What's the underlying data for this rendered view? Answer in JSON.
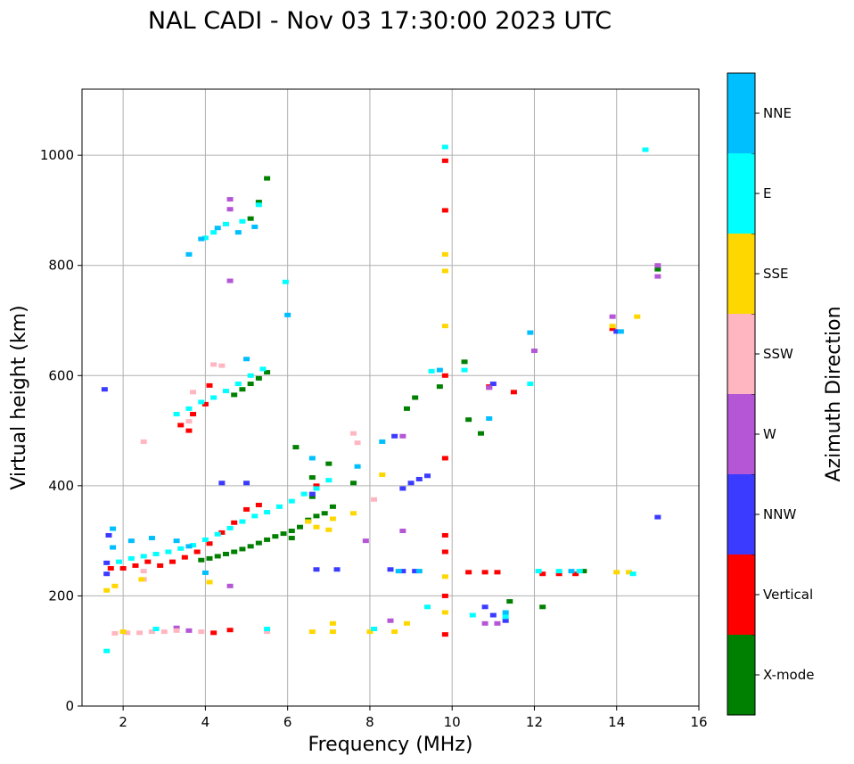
{
  "chart_data": {
    "type": "scatter",
    "title": "NAL CADI - Nov 03 17:30:00 2023 UTC",
    "xlabel": "Frequency (MHz)",
    "ylabel": "Virtual height (km)",
    "xlim": [
      1.0,
      16.0
    ],
    "ylim": [
      0,
      1120
    ],
    "xticks": [
      2,
      4,
      6,
      8,
      10,
      12,
      14,
      16
    ],
    "yticks": [
      0,
      200,
      400,
      600,
      800,
      1000
    ],
    "grid": true,
    "colorbar": {
      "label": "Azimuth Direction",
      "categories": [
        {
          "name": "X-mode",
          "color": "#008000"
        },
        {
          "name": "Vertical",
          "color": "#ff0000"
        },
        {
          "name": "NNW",
          "color": "#3b3bff"
        },
        {
          "name": "W",
          "color": "#b556d6"
        },
        {
          "name": "SSW",
          "color": "#ffb6c1"
        },
        {
          "name": "SSE",
          "color": "#ffd700"
        },
        {
          "name": "E",
          "color": "#00ffff"
        },
        {
          "name": "NNE",
          "color": "#00bfff"
        }
      ]
    },
    "series": [
      {
        "name": "X-mode",
        "points": [
          [
            3.9,
            265
          ],
          [
            4.1,
            268
          ],
          [
            4.3,
            272
          ],
          [
            4.5,
            276
          ],
          [
            4.7,
            280
          ],
          [
            4.9,
            285
          ],
          [
            5.1,
            290
          ],
          [
            5.3,
            296
          ],
          [
            5.5,
            302
          ],
          [
            5.7,
            308
          ],
          [
            5.9,
            313
          ],
          [
            6.1,
            318
          ],
          [
            6.3,
            325
          ],
          [
            6.5,
            338
          ],
          [
            6.7,
            345
          ],
          [
            6.9,
            350
          ],
          [
            7.1,
            362
          ],
          [
            7.6,
            405
          ],
          [
            4.7,
            565
          ],
          [
            4.9,
            575
          ],
          [
            5.1,
            585
          ],
          [
            5.3,
            595
          ],
          [
            5.5,
            606
          ],
          [
            5.3,
            915
          ],
          [
            5.5,
            958
          ],
          [
            5.1,
            885
          ],
          [
            6.1,
            305
          ],
          [
            6.6,
            380
          ],
          [
            7.0,
            440
          ],
          [
            8.9,
            540
          ],
          [
            9.1,
            560
          ],
          [
            9.7,
            580
          ],
          [
            10.3,
            625
          ],
          [
            10.4,
            520
          ],
          [
            10.7,
            495
          ],
          [
            11.4,
            190
          ],
          [
            12.2,
            180
          ],
          [
            13.2,
            245
          ],
          [
            15.0,
            793
          ],
          [
            6.2,
            470
          ],
          [
            6.6,
            415
          ]
        ]
      },
      {
        "name": "Vertical",
        "points": [
          [
            1.7,
            250
          ],
          [
            2.0,
            250
          ],
          [
            2.3,
            255
          ],
          [
            2.6,
            262
          ],
          [
            2.9,
            255
          ],
          [
            3.2,
            262
          ],
          [
            3.5,
            270
          ],
          [
            3.8,
            280
          ],
          [
            4.1,
            295
          ],
          [
            4.4,
            315
          ],
          [
            4.7,
            333
          ],
          [
            5.0,
            357
          ],
          [
            5.3,
            365
          ],
          [
            3.4,
            510
          ],
          [
            3.7,
            530
          ],
          [
            4.0,
            548
          ],
          [
            4.1,
            582
          ],
          [
            3.6,
            500
          ],
          [
            9.83,
            280
          ],
          [
            9.83,
            310
          ],
          [
            9.83,
            200
          ],
          [
            9.83,
            130
          ],
          [
            9.83,
            900
          ],
          [
            9.83,
            990
          ],
          [
            9.83,
            600
          ],
          [
            9.83,
            450
          ],
          [
            10.4,
            243
          ],
          [
            10.8,
            243
          ],
          [
            11.1,
            243
          ],
          [
            12.2,
            240
          ],
          [
            12.6,
            240
          ],
          [
            13.0,
            240
          ],
          [
            13.9,
            685
          ],
          [
            4.6,
            138
          ],
          [
            4.2,
            133
          ],
          [
            6.7,
            400
          ],
          [
            10.9,
            580
          ],
          [
            11.5,
            570
          ]
        ]
      },
      {
        "name": "NNW",
        "points": [
          [
            1.6,
            260
          ],
          [
            1.6,
            240
          ],
          [
            1.65,
            310
          ],
          [
            1.55,
            575
          ],
          [
            8.5,
            248
          ],
          [
            8.8,
            245
          ],
          [
            9.1,
            245
          ],
          [
            6.7,
            248
          ],
          [
            7.2,
            248
          ],
          [
            8.8,
            395
          ],
          [
            9.0,
            405
          ],
          [
            9.2,
            412
          ],
          [
            9.4,
            418
          ],
          [
            8.6,
            490
          ],
          [
            15.0,
            343
          ],
          [
            14.0,
            680
          ],
          [
            11.0,
            585
          ],
          [
            11.0,
            165
          ],
          [
            11.3,
            155
          ],
          [
            10.8,
            180
          ],
          [
            6.6,
            385
          ],
          [
            5.0,
            405
          ],
          [
            4.4,
            405
          ]
        ]
      },
      {
        "name": "W",
        "points": [
          [
            3.3,
            142
          ],
          [
            3.6,
            137
          ],
          [
            4.6,
            920
          ],
          [
            4.6,
            902
          ],
          [
            4.6,
            772
          ],
          [
            15.0,
            800
          ],
          [
            15.0,
            780
          ],
          [
            13.9,
            707
          ],
          [
            12.0,
            645
          ],
          [
            8.8,
            490
          ],
          [
            8.8,
            318
          ],
          [
            7.9,
            300
          ],
          [
            10.8,
            150
          ],
          [
            11.1,
            150
          ],
          [
            4.6,
            218
          ],
          [
            8.5,
            155
          ],
          [
            10.9,
            578
          ]
        ]
      },
      {
        "name": "SSW",
        "points": [
          [
            1.8,
            132
          ],
          [
            2.1,
            133
          ],
          [
            2.4,
            133
          ],
          [
            2.7,
            135
          ],
          [
            3.0,
            135
          ],
          [
            3.3,
            137
          ],
          [
            3.9,
            135
          ],
          [
            2.5,
            230
          ],
          [
            2.5,
            245
          ],
          [
            2.5,
            480
          ],
          [
            3.6,
            517
          ],
          [
            3.7,
            570
          ],
          [
            4.2,
            620
          ],
          [
            4.4,
            618
          ],
          [
            7.6,
            495
          ],
          [
            7.7,
            478
          ],
          [
            8.1,
            375
          ],
          [
            5.5,
            135
          ]
        ]
      },
      {
        "name": "SSE",
        "points": [
          [
            1.6,
            210
          ],
          [
            1.8,
            218
          ],
          [
            2.45,
            230
          ],
          [
            4.1,
            225
          ],
          [
            6.5,
            335
          ],
          [
            6.7,
            325
          ],
          [
            7.0,
            320
          ],
          [
            7.1,
            340
          ],
          [
            7.1,
            150
          ],
          [
            7.1,
            135
          ],
          [
            6.6,
            135
          ],
          [
            7.6,
            350
          ],
          [
            9.83,
            820
          ],
          [
            9.83,
            790
          ],
          [
            9.83,
            690
          ],
          [
            9.83,
            235
          ],
          [
            9.83,
            170
          ],
          [
            14.5,
            707
          ],
          [
            13.9,
            690
          ],
          [
            14.0,
            243
          ],
          [
            14.3,
            243
          ],
          [
            8.3,
            420
          ],
          [
            8.6,
            135
          ],
          [
            8.9,
            150
          ],
          [
            8.0,
            135
          ],
          [
            2.0,
            135
          ]
        ]
      },
      {
        "name": "E",
        "points": [
          [
            1.9,
            262
          ],
          [
            2.2,
            268
          ],
          [
            2.5,
            272
          ],
          [
            2.8,
            276
          ],
          [
            3.1,
            280
          ],
          [
            3.4,
            286
          ],
          [
            3.7,
            292
          ],
          [
            4.0,
            302
          ],
          [
            4.3,
            312
          ],
          [
            4.6,
            323
          ],
          [
            4.9,
            335
          ],
          [
            5.2,
            345
          ],
          [
            5.5,
            352
          ],
          [
            5.8,
            362
          ],
          [
            6.1,
            372
          ],
          [
            6.4,
            385
          ],
          [
            6.7,
            395
          ],
          [
            7.0,
            410
          ],
          [
            3.3,
            530
          ],
          [
            3.6,
            540
          ],
          [
            3.9,
            552
          ],
          [
            4.2,
            560
          ],
          [
            4.5,
            572
          ],
          [
            4.8,
            585
          ],
          [
            5.1,
            600
          ],
          [
            5.4,
            612
          ],
          [
            4.0,
            850
          ],
          [
            4.2,
            860
          ],
          [
            4.5,
            875
          ],
          [
            4.9,
            880
          ],
          [
            5.3,
            910
          ],
          [
            5.95,
            770
          ],
          [
            14.7,
            1010
          ],
          [
            9.83,
            1015
          ],
          [
            9.5,
            608
          ],
          [
            10.3,
            610
          ],
          [
            11.9,
            585
          ],
          [
            12.1,
            245
          ],
          [
            12.6,
            245
          ],
          [
            13.1,
            245
          ],
          [
            14.4,
            240
          ],
          [
            11.3,
            162
          ],
          [
            10.5,
            165
          ],
          [
            9.4,
            180
          ],
          [
            8.1,
            140
          ],
          [
            1.6,
            100
          ],
          [
            5.5,
            140
          ],
          [
            2.8,
            140
          ]
        ]
      },
      {
        "name": "NNE",
        "points": [
          [
            1.75,
            322
          ],
          [
            1.75,
            288
          ],
          [
            2.2,
            300
          ],
          [
            2.7,
            305
          ],
          [
            3.3,
            300
          ],
          [
            3.6,
            820
          ],
          [
            3.9,
            848
          ],
          [
            4.3,
            868
          ],
          [
            4.8,
            860
          ],
          [
            5.2,
            870
          ],
          [
            6.0,
            710
          ],
          [
            5.0,
            630
          ],
          [
            6.6,
            450
          ],
          [
            7.7,
            435
          ],
          [
            8.3,
            480
          ],
          [
            9.7,
            610
          ],
          [
            11.9,
            678
          ],
          [
            14.1,
            680
          ],
          [
            12.9,
            245
          ],
          [
            8.7,
            245
          ],
          [
            9.2,
            245
          ],
          [
            10.9,
            522
          ],
          [
            11.3,
            170
          ],
          [
            4.0,
            242
          ],
          [
            3.6,
            290
          ]
        ]
      }
    ]
  }
}
